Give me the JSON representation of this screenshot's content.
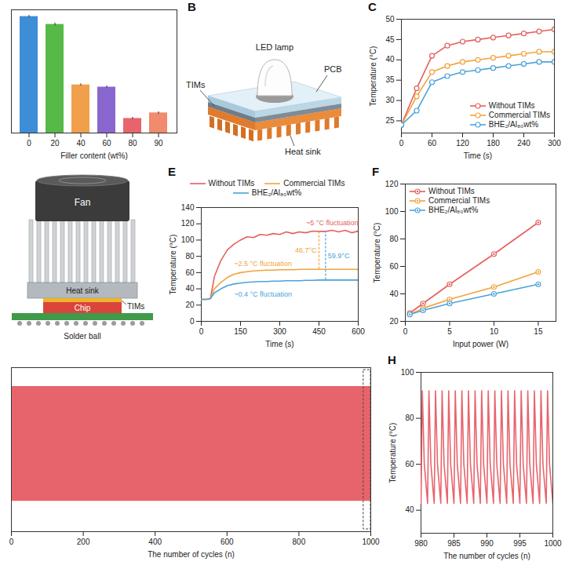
{
  "chart_data": [
    {
      "type": "bar",
      "x_label": "Filler content (wt%)",
      "categories": [
        "0",
        "20",
        "40",
        "60",
        "80",
        "90"
      ],
      "values": [
        5.2,
        4.85,
        2.15,
        2.05,
        0.65,
        0.9
      ],
      "errors": [
        0.05,
        0.06,
        0.05,
        0.05,
        0.05,
        0.05
      ],
      "colors": [
        "#3d8ed6",
        "#57b947",
        "#f0a04b",
        "#8a66cf",
        "#e8646c",
        "#f08b6e"
      ],
      "ylim": [
        0,
        5.5
      ],
      "tick_labels": "x"
    },
    {
      "panel": "C",
      "type": "line",
      "marker": "circle",
      "x_label": "Time (s)",
      "y_label": "Temperature (°C)",
      "x": [
        0,
        30,
        60,
        90,
        120,
        150,
        180,
        210,
        240,
        270,
        300
      ],
      "series": [
        {
          "name": "Without TIMs",
          "color": "#e4605e",
          "values": [
            24,
            33,
            41,
            43.5,
            44.5,
            45,
            45.5,
            46,
            46.5,
            47,
            47.5
          ]
        },
        {
          "name": "Commercial TIMs",
          "color": "#f2a33a",
          "values": [
            24,
            31,
            37,
            38.5,
            39.5,
            40,
            40.5,
            41,
            41.5,
            42,
            42
          ]
        },
        {
          "name": "BHE₂/Al₈₀wt%",
          "color": "#4ba3d9",
          "values": [
            24,
            27.5,
            34.5,
            36,
            37,
            37.5,
            38,
            38.5,
            39,
            39.5,
            39.5
          ]
        }
      ],
      "xlim": [
        0,
        300
      ],
      "xticks": [
        0,
        60,
        120,
        180,
        240,
        300
      ],
      "ylim": [
        22,
        50
      ],
      "yticks": [
        25,
        30,
        35,
        40,
        45,
        50
      ],
      "legend": "bottom-right"
    },
    {
      "panel": "E",
      "type": "line",
      "x_label": "Time (s)",
      "y_label": "Temperature (°C)",
      "x": [
        0,
        20,
        35,
        50,
        75,
        100,
        125,
        150,
        175,
        200,
        225,
        250,
        275,
        300,
        325,
        350,
        375,
        400,
        425,
        450,
        475,
        500,
        525,
        550,
        575,
        600
      ],
      "series": [
        {
          "name": "Without TIMs",
          "color": "#e4605e",
          "annotation": "~5 °C fluctuation",
          "values": [
            27,
            27,
            28,
            55,
            75,
            88,
            95,
            100,
            104,
            103,
            107,
            106,
            108,
            107,
            110,
            108,
            110,
            109,
            111,
            110.7,
            110.7,
            112,
            110,
            112,
            109,
            111
          ]
        },
        {
          "name": "Commercial TIMs",
          "color": "#f2a33a",
          "annotation": "~2.5 °C fluctuation",
          "values": [
            27,
            27,
            28,
            40,
            48,
            54,
            58,
            60,
            61,
            62,
            62.5,
            63,
            63,
            63.5,
            63.5,
            63.5,
            64,
            64,
            64,
            64,
            64,
            64,
            64,
            64,
            64,
            64
          ]
        },
        {
          "name": "BHE₂/Al₈₀wt%",
          "color": "#4ba3d9",
          "annotation": "~0.4 °C fluctuation",
          "values": [
            27,
            27,
            28,
            35,
            40,
            44,
            46,
            47,
            48,
            48.5,
            49,
            49,
            49.5,
            49.5,
            50,
            50,
            50,
            50.5,
            50.5,
            50.8,
            50.8,
            50.8,
            50.8,
            50.8,
            50.8,
            50.8
          ]
        }
      ],
      "differences": [
        {
          "from": "Commercial TIMs",
          "to": "Without TIMs",
          "x": 450,
          "label": "46.7°C"
        },
        {
          "from": "BHE₂/Al₈₀wt%",
          "to": "Without TIMs",
          "x": 475,
          "label": "59.9°C"
        }
      ],
      "xlim": [
        0,
        600
      ],
      "xticks": [
        0,
        150,
        300,
        450,
        600
      ],
      "ylim": [
        0,
        140
      ],
      "yticks": [
        0,
        20,
        40,
        60,
        80,
        100,
        120,
        140
      ],
      "legend": "top"
    },
    {
      "panel": "F",
      "type": "line",
      "marker": "circle-dot",
      "x_label": "Input power (W)",
      "y_label": "Temperature (°C)",
      "x": [
        0.5,
        2,
        5,
        10,
        15
      ],
      "series": [
        {
          "name": "Without TIMs",
          "color": "#e4605e",
          "values": [
            26,
            33,
            47,
            69,
            92
          ]
        },
        {
          "name": "Commercial TIMs",
          "color": "#f2a33a",
          "values": [
            25,
            29.5,
            36,
            45,
            56
          ]
        },
        {
          "name": "BHE₂/Al₈₀wt%",
          "color": "#4ba3d9",
          "values": [
            25,
            28,
            33,
            40,
            47
          ]
        }
      ],
      "xlim": [
        0,
        17
      ],
      "xticks": [
        0,
        5,
        10,
        15
      ],
      "ylim": [
        20,
        120
      ],
      "yticks": [
        20,
        40,
        60,
        80,
        100,
        120
      ],
      "legend": "top-left"
    },
    {
      "type": "area",
      "x_label": "The number of cycles (n)",
      "x": [
        0,
        1000
      ],
      "low": [
        43,
        43
      ],
      "high": [
        92,
        92
      ],
      "color": "#e8646c",
      "zoom_range": [
        980,
        1000
      ],
      "xlim": [
        0,
        1000
      ],
      "xticks": [
        0,
        200,
        400,
        600,
        800,
        1000
      ],
      "ylim": [
        30,
        100
      ],
      "tick_labels": "x"
    },
    {
      "panel": "H",
      "type": "line",
      "x_label": "The number of cycles (n)",
      "y_label": "Temperature (°C)",
      "x": [
        980,
        980.2,
        980.5,
        981,
        981.2,
        981.5,
        982,
        982.2,
        982.5,
        983,
        983.2,
        983.5,
        984,
        984.2,
        984.5,
        985,
        985.2,
        985.5,
        986,
        986.2,
        986.5,
        987,
        987.2,
        987.5,
        988,
        988.2,
        988.5,
        989,
        989.2,
        989.5,
        990,
        990.2,
        990.5,
        991,
        991.2,
        991.5,
        992,
        992.2,
        992.5,
        993,
        993.2,
        993.5,
        994,
        994.2,
        994.5,
        995,
        995.2,
        995.5,
        996,
        996.2,
        996.5,
        997,
        997.2,
        997.5,
        998,
        998.2,
        998.5,
        999,
        999.2,
        999.5,
        1000
      ],
      "values": [
        43,
        92,
        60,
        43,
        92,
        60,
        43,
        92,
        60,
        43,
        92,
        60,
        43,
        92,
        60,
        43,
        92,
        60,
        43,
        92,
        60,
        43,
        92,
        60,
        43,
        92,
        60,
        43,
        92,
        60,
        43,
        92,
        60,
        43,
        92,
        60,
        43,
        92,
        60,
        43,
        92,
        60,
        43,
        92,
        60,
        43,
        92,
        60,
        43,
        92,
        60,
        43,
        92,
        60,
        43,
        92,
        60,
        43,
        92,
        60,
        43
      ],
      "color": "#e8646c",
      "xlim": [
        980,
        1000
      ],
      "xticks": [
        980,
        985,
        990,
        995,
        1000
      ],
      "ylim": [
        30,
        100
      ],
      "yticks": [
        40,
        60,
        80,
        100
      ]
    }
  ],
  "diagrams": [
    {
      "panel": "B",
      "labels": {
        "lamp": "LED lamp",
        "pcb": "PCB",
        "tims": "TIMs",
        "heat_sink": "Heat sink"
      }
    },
    {
      "labels": {
        "fan": "Fan",
        "heat_sink": "Heat sink",
        "tims": "TIMs",
        "chip": "Chip",
        "solder_ball": "Solder ball"
      }
    }
  ]
}
